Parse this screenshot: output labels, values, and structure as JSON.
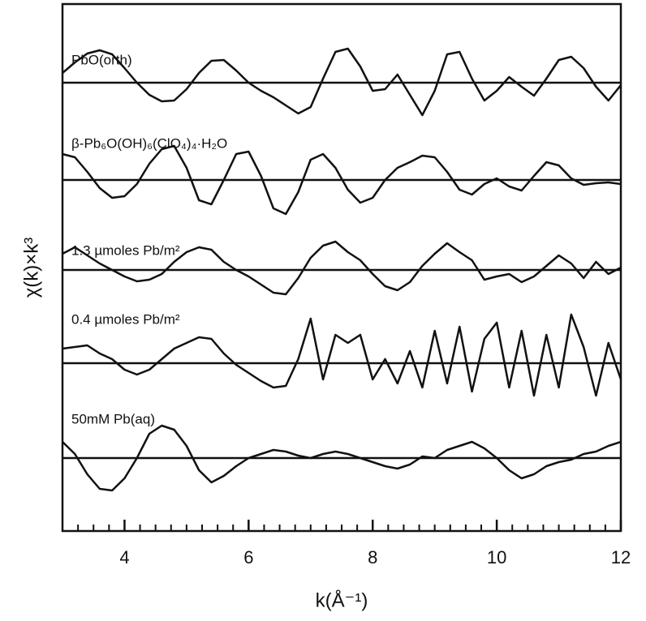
{
  "chart_data": {
    "type": "line",
    "xlabel": "k(Å⁻¹)",
    "ylabel": "χ(k)×k³",
    "xlim": [
      3,
      12
    ],
    "ylim": [
      0,
      650
    ],
    "xticks": [
      4,
      6,
      8,
      10,
      12
    ],
    "xminorticks": [
      3.25,
      3.5,
      3.75,
      4.25,
      4.5,
      4.75,
      5,
      5.25,
      5.5,
      5.75,
      6.25,
      6.5,
      6.75,
      7,
      7.25,
      7.5,
      7.75,
      8.25,
      8.5,
      8.75,
      9,
      9.25,
      9.5,
      9.75,
      10.25,
      10.5,
      10.75,
      11,
      11.25,
      11.5,
      11.75
    ],
    "x": [
      3.0,
      3.2,
      3.4,
      3.6,
      3.8,
      4.0,
      4.2,
      4.4,
      4.6,
      4.8,
      5.0,
      5.2,
      5.4,
      5.6,
      5.8,
      6.0,
      6.2,
      6.4,
      6.6,
      6.8,
      7.0,
      7.2,
      7.4,
      7.6,
      7.8,
      8.0,
      8.2,
      8.4,
      8.6,
      8.8,
      9.0,
      9.2,
      9.4,
      9.6,
      9.8,
      10.0,
      10.2,
      10.4,
      10.6,
      10.8,
      11.0,
      11.2,
      11.4,
      11.6,
      11.8,
      12.0
    ],
    "series": [
      {
        "name": "PbO(orth)",
        "color": "#111111",
        "baseline": 553,
        "values": [
          565,
          578,
          589,
          593,
          588,
          571,
          553,
          538,
          530,
          531,
          545,
          565,
          580,
          581,
          568,
          553,
          543,
          535,
          525,
          515,
          523,
          558,
          591,
          595,
          573,
          543,
          545,
          563,
          538,
          513,
          543,
          588,
          591,
          558,
          531,
          543,
          560,
          548,
          537,
          558,
          581,
          585,
          571,
          548,
          531,
          550
        ]
      },
      {
        "name": "β-Pb₆O(OH)₆(ClO₄)₄·H₂O",
        "color": "#111111",
        "baseline": 433,
        "values": [
          465,
          461,
          443,
          423,
          411,
          413,
          428,
          453,
          471,
          475,
          448,
          408,
          403,
          433,
          465,
          468,
          438,
          398,
          391,
          418,
          458,
          465,
          448,
          421,
          405,
          411,
          433,
          448,
          455,
          463,
          461,
          443,
          421,
          415,
          428,
          435,
          425,
          420,
          438,
          455,
          451,
          435,
          427,
          429,
          430,
          428
        ]
      },
      {
        "name": "1.3 µmoles Pb/m²",
        "color": "#111111",
        "baseline": 322,
        "values": [
          342,
          350,
          340,
          330,
          322,
          314,
          308,
          310,
          317,
          332,
          344,
          350,
          347,
          332,
          322,
          314,
          304,
          294,
          292,
          312,
          337,
          352,
          357,
          344,
          334,
          317,
          302,
          297,
          307,
          327,
          342,
          355,
          344,
          334,
          310,
          314,
          317,
          307,
          314,
          327,
          340,
          330,
          312,
          332,
          317,
          325
        ]
      },
      {
        "name": "0.4 µmoles Pb/m²",
        "color": "#111111",
        "baseline": 207,
        "values": [
          225,
          227,
          229,
          219,
          212,
          199,
          193,
          199,
          212,
          225,
          232,
          239,
          237,
          219,
          205,
          195,
          185,
          177,
          179,
          212,
          262,
          187,
          242,
          232,
          242,
          187,
          212,
          182,
          222,
          177,
          247,
          182,
          252,
          172,
          237,
          257,
          177,
          247,
          167,
          242,
          177,
          267,
          227,
          167,
          232,
          187
        ]
      },
      {
        "name": "50mM Pb(aq)",
        "color": "#111111",
        "baseline": 90,
        "values": [
          110,
          95,
          70,
          52,
          50,
          65,
          90,
          120,
          130,
          125,
          105,
          75,
          60,
          68,
          80,
          90,
          95,
          100,
          98,
          93,
          90,
          95,
          98,
          95,
          90,
          85,
          80,
          77,
          82,
          92,
          90,
          100,
          105,
          110,
          102,
          90,
          75,
          65,
          70,
          80,
          85,
          88,
          95,
          98,
          105,
          110
        ]
      }
    ]
  }
}
